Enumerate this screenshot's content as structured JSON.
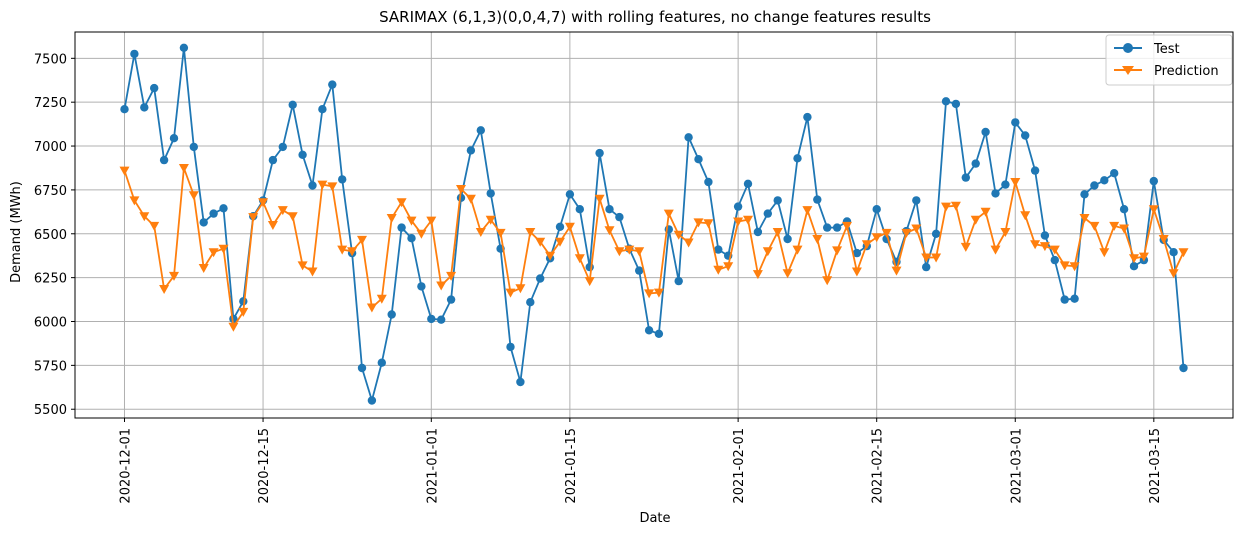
{
  "chart_data": {
    "type": "line",
    "title": "SARIMAX (6,1,3)(0,0,4,7) with rolling features, no change features results",
    "xlabel": "Date",
    "ylabel": "Demand (MWh)",
    "x_start": "2020-12-01",
    "xlim": [
      "2020-11-26",
      "2021-03-23"
    ],
    "ylim": [
      5450,
      7650
    ],
    "grid": true,
    "legend_position": "top-right",
    "x_ticks": [
      "2020-12-01",
      "2020-12-15",
      "2021-01-01",
      "2021-01-15",
      "2021-02-01",
      "2021-02-15",
      "2021-03-01",
      "2021-03-15"
    ],
    "y_ticks": [
      5500,
      5750,
      6000,
      6250,
      6500,
      6750,
      7000,
      7250,
      7500
    ],
    "series": [
      {
        "name": "Test",
        "color": "#1f77b4",
        "marker": "circle",
        "values": [
          7210,
          7525,
          7220,
          7330,
          6920,
          7045,
          7560,
          6995,
          6565,
          6615,
          6645,
          6015,
          6115,
          6600,
          6690,
          6920,
          6995,
          7235,
          6950,
          6775,
          7210,
          7350,
          6810,
          6390,
          5735,
          5550,
          5765,
          6040,
          6535,
          6475,
          6200,
          6015,
          6010,
          6125,
          6705,
          6975,
          7090,
          6730,
          6415,
          5855,
          5655,
          6110,
          6245,
          6360,
          6540,
          6725,
          6640,
          6310,
          6960,
          6640,
          6595,
          6415,
          6290,
          5950,
          5930,
          6525,
          6230,
          7050,
          6925,
          6795,
          6410,
          6375,
          6655,
          6785,
          6510,
          6615,
          6690,
          6470,
          6930,
          7165,
          6695,
          6535,
          6535,
          6570,
          6390,
          6430,
          6640,
          6470,
          6340,
          6515,
          6690,
          6310,
          6500,
          7255,
          7240,
          6820,
          6900,
          7080,
          6730,
          6780,
          7135,
          7060,
          6860,
          6490,
          6350,
          6125,
          6130,
          6725,
          6775,
          6805,
          6845,
          6640,
          6315,
          6350,
          6800,
          6465,
          6395,
          5735
        ]
      },
      {
        "name": "Prediction",
        "color": "#ff7f0e",
        "marker": "triangle-down",
        "values": [
          6860,
          6690,
          6600,
          6545,
          6185,
          6260,
          6875,
          6720,
          6305,
          6395,
          6415,
          5970,
          6055,
          6595,
          6680,
          6550,
          6635,
          6600,
          6320,
          6285,
          6780,
          6770,
          6410,
          6400,
          6465,
          6080,
          6130,
          6590,
          6680,
          6575,
          6500,
          6575,
          6205,
          6260,
          6755,
          6700,
          6510,
          6580,
          6505,
          6165,
          6190,
          6510,
          6455,
          6375,
          6455,
          6540,
          6360,
          6230,
          6700,
          6520,
          6400,
          6410,
          6400,
          6160,
          6165,
          6615,
          6495,
          6450,
          6565,
          6560,
          6295,
          6315,
          6570,
          6580,
          6270,
          6400,
          6510,
          6275,
          6410,
          6635,
          6470,
          6235,
          6405,
          6545,
          6285,
          6440,
          6480,
          6505,
          6290,
          6505,
          6530,
          6365,
          6365,
          6655,
          6660,
          6425,
          6580,
          6625,
          6410,
          6510,
          6795,
          6605,
          6440,
          6430,
          6410,
          6320,
          6315,
          6590,
          6545,
          6395,
          6545,
          6530,
          6360,
          6370,
          6640,
          6470,
          6275,
          6395
        ]
      }
    ]
  }
}
